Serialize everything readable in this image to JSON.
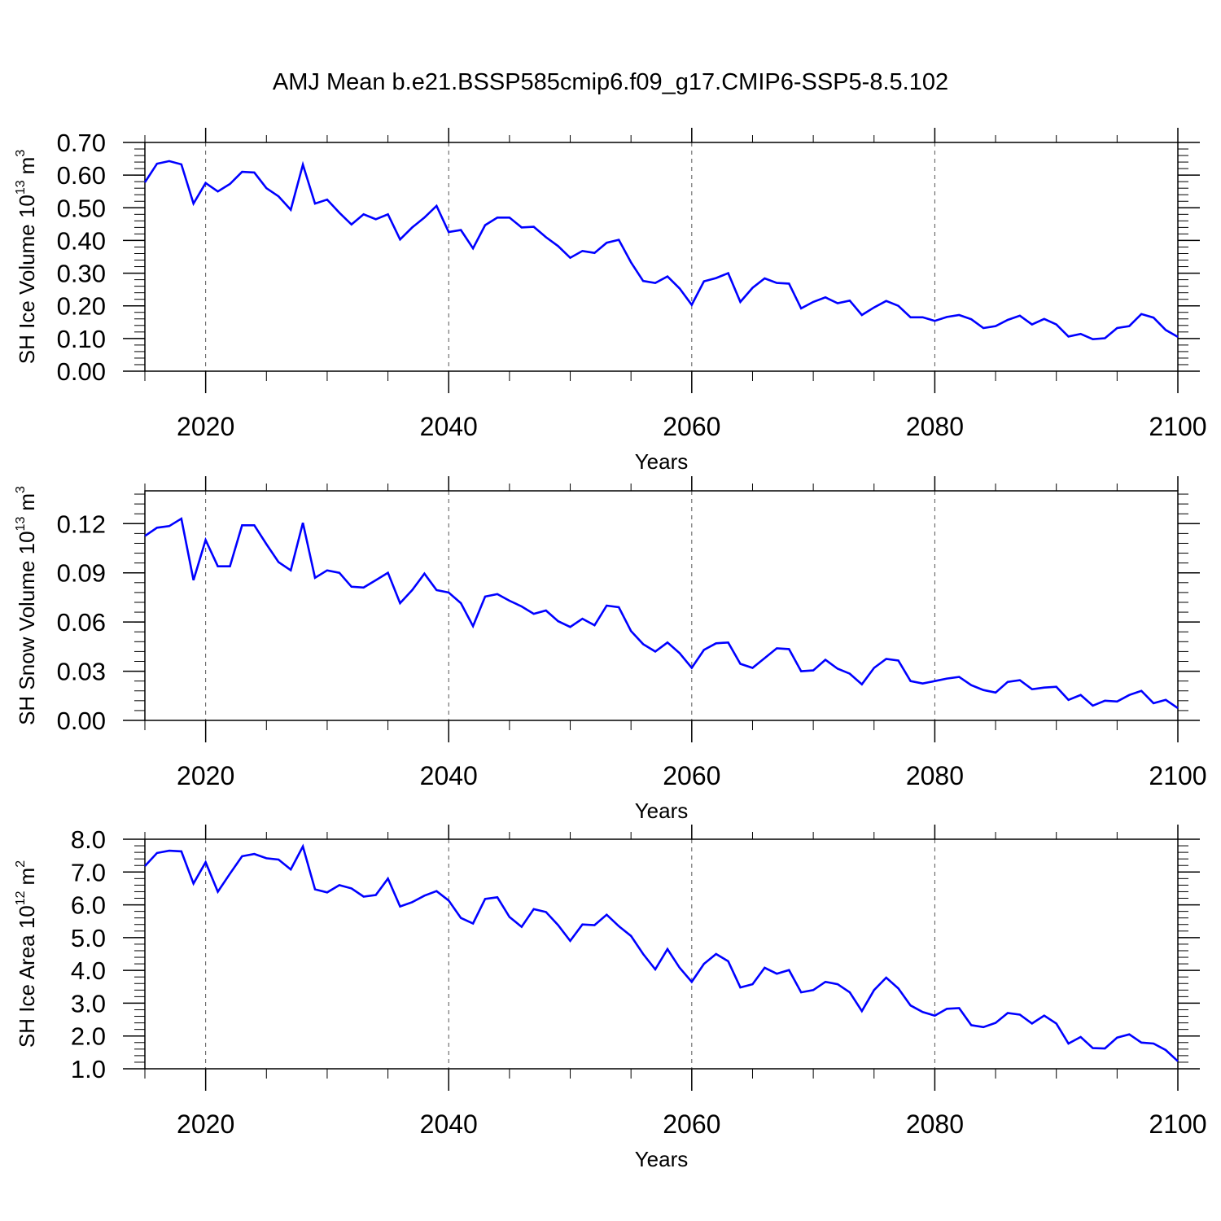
{
  "title": "AMJ Mean b.e21.BSSP585cmip6.f09_g17.CMIP6-SSP5-8.5.102",
  "colors": {
    "line": "#0000ff",
    "axes": "#000000",
    "grid": "#555555"
  },
  "chart_data": [
    {
      "type": "line",
      "ylabel": "SH Ice Volume 10",
      "yexp": "13",
      "yunit": "m",
      "yunit_exp": "3",
      "xlabel": "Years",
      "xlim": [
        2015,
        2100
      ],
      "ylim": [
        0.0,
        0.7
      ],
      "yticks": [
        "0.00",
        "0.10",
        "0.20",
        "0.30",
        "0.40",
        "0.50",
        "0.60",
        "0.70"
      ],
      "yminor_step": 0.02,
      "xticks": [
        "2020",
        "2040",
        "2060",
        "2080",
        "2100"
      ],
      "grid": "dashed vertical at major x ticks",
      "x_start": 2015,
      "values": [
        0.578,
        0.635,
        0.643,
        0.633,
        0.513,
        0.576,
        0.55,
        0.573,
        0.61,
        0.608,
        0.56,
        0.535,
        0.494,
        0.632,
        0.513,
        0.525,
        0.485,
        0.449,
        0.48,
        0.465,
        0.48,
        0.403,
        0.44,
        0.47,
        0.506,
        0.426,
        0.432,
        0.376,
        0.447,
        0.47,
        0.47,
        0.44,
        0.442,
        0.41,
        0.383,
        0.347,
        0.368,
        0.362,
        0.393,
        0.402,
        0.333,
        0.276,
        0.27,
        0.29,
        0.253,
        0.203,
        0.275,
        0.285,
        0.3,
        0.212,
        0.255,
        0.284,
        0.27,
        0.268,
        0.192,
        0.212,
        0.226,
        0.208,
        0.216,
        0.172,
        0.195,
        0.215,
        0.2,
        0.165,
        0.165,
        0.154,
        0.166,
        0.172,
        0.159,
        0.132,
        0.138,
        0.157,
        0.17,
        0.143,
        0.16,
        0.143,
        0.106,
        0.114,
        0.098,
        0.101,
        0.132,
        0.138,
        0.175,
        0.164,
        0.126,
        0.105
      ]
    },
    {
      "type": "line",
      "ylabel": "SH Snow Volume 10",
      "yexp": "13",
      "yunit": "m",
      "yunit_exp": "3",
      "xlabel": "Years",
      "xlim": [
        2015,
        2100
      ],
      "ylim": [
        0.0,
        0.14
      ],
      "yticks": [
        "0.00",
        "0.03",
        "0.06",
        "0.09",
        "0.12"
      ],
      "yminor_step": 0.006,
      "xticks": [
        "2020",
        "2040",
        "2060",
        "2080",
        "2100"
      ],
      "grid": "dashed vertical at major x ticks",
      "x_start": 2015,
      "values": [
        0.1125,
        0.1175,
        0.1185,
        0.123,
        0.0855,
        0.11,
        0.094,
        0.094,
        0.119,
        0.119,
        0.1075,
        0.0965,
        0.0915,
        0.1205,
        0.087,
        0.0915,
        0.09,
        0.0815,
        0.081,
        0.0855,
        0.09,
        0.0715,
        0.0795,
        0.0895,
        0.0795,
        0.078,
        0.0715,
        0.0575,
        0.0755,
        0.077,
        0.073,
        0.0695,
        0.065,
        0.067,
        0.0605,
        0.057,
        0.062,
        0.058,
        0.07,
        0.069,
        0.0545,
        0.0465,
        0.042,
        0.0475,
        0.041,
        0.032,
        0.043,
        0.047,
        0.0475,
        0.0345,
        0.032,
        0.038,
        0.044,
        0.0435,
        0.03,
        0.0305,
        0.037,
        0.0315,
        0.0285,
        0.022,
        0.032,
        0.0375,
        0.0365,
        0.024,
        0.0225,
        0.024,
        0.0255,
        0.0265,
        0.0215,
        0.0185,
        0.017,
        0.0235,
        0.0245,
        0.019,
        0.02,
        0.0205,
        0.0125,
        0.0155,
        0.009,
        0.012,
        0.0115,
        0.0155,
        0.018,
        0.0105,
        0.0125,
        0.0075
      ]
    },
    {
      "type": "line",
      "ylabel": "SH Ice Area 10",
      "yexp": "12",
      "yunit": "m",
      "yunit_exp": "2",
      "xlabel": "Years",
      "xlim": [
        2015,
        2100
      ],
      "ylim": [
        1.0,
        8.0
      ],
      "yticks": [
        "1.0",
        "2.0",
        "3.0",
        "4.0",
        "5.0",
        "6.0",
        "7.0",
        "8.0"
      ],
      "yminor_step": 0.2,
      "xticks": [
        "2020",
        "2040",
        "2060",
        "2080",
        "2100"
      ],
      "grid": "dashed vertical at major x ticks",
      "x_start": 2015,
      "values": [
        7.18,
        7.58,
        7.65,
        7.63,
        6.65,
        7.3,
        6.4,
        6.95,
        7.48,
        7.55,
        7.42,
        7.38,
        7.08,
        7.78,
        6.47,
        6.38,
        6.6,
        6.5,
        6.25,
        6.3,
        6.8,
        5.95,
        6.08,
        6.28,
        6.42,
        6.13,
        5.6,
        5.43,
        6.18,
        6.23,
        5.63,
        5.33,
        5.87,
        5.78,
        5.38,
        4.9,
        5.4,
        5.38,
        5.7,
        5.35,
        5.05,
        4.5,
        4.03,
        4.65,
        4.08,
        3.65,
        4.2,
        4.5,
        4.28,
        3.48,
        3.58,
        4.08,
        3.9,
        4.01,
        3.33,
        3.4,
        3.65,
        3.58,
        3.33,
        2.76,
        3.4,
        3.78,
        3.45,
        2.93,
        2.73,
        2.62,
        2.83,
        2.85,
        2.33,
        2.27,
        2.4,
        2.7,
        2.65,
        2.38,
        2.62,
        2.38,
        1.77,
        1.97,
        1.63,
        1.62,
        1.95,
        2.05,
        1.8,
        1.77,
        1.57,
        1.23
      ]
    }
  ]
}
